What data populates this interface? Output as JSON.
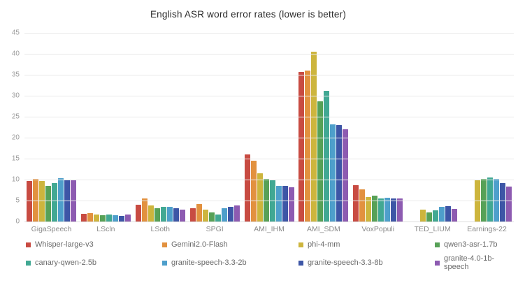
{
  "chart_data": {
    "type": "bar",
    "title": "English ASR word error rates (lower is better)",
    "categories": [
      "GigaSpeech",
      "LScln",
      "LSoth",
      "SPGI",
      "AMI_IHM",
      "AMI_SDM",
      "VoxPopuli",
      "TED_LIUM",
      "Earnings-22"
    ],
    "series": [
      {
        "name": "Whisper-large-v3",
        "color": "#c84b42",
        "values": [
          9.8,
          2.0,
          4.2,
          3.3,
          16.2,
          35.8,
          8.9,
          null,
          null
        ]
      },
      {
        "name": "Gemini2.0-Flash",
        "color": "#e2913f",
        "values": [
          10.3,
          2.2,
          5.7,
          4.3,
          14.6,
          36.2,
          7.8,
          null,
          null
        ]
      },
      {
        "name": "phi-4-mm",
        "color": "#cdb53d",
        "values": [
          9.8,
          1.8,
          4.0,
          3.0,
          11.6,
          40.7,
          6.0,
          3.0,
          10.0
        ]
      },
      {
        "name": "qwen3-asr-1.7b",
        "color": "#57a157",
        "values": [
          8.6,
          1.7,
          3.4,
          2.4,
          10.4,
          28.8,
          6.4,
          2.3,
          10.3
        ]
      },
      {
        "name": "canary-qwen-2.5b",
        "color": "#41a893",
        "values": [
          9.3,
          1.8,
          3.6,
          1.9,
          10.0,
          31.4,
          5.6,
          2.8,
          10.7
        ]
      },
      {
        "name": "granite-speech-3.3-2b",
        "color": "#4e9fcb",
        "values": [
          10.5,
          1.7,
          3.7,
          3.3,
          8.7,
          23.3,
          5.9,
          3.7,
          10.3
        ]
      },
      {
        "name": "granite-speech-3.3-8b",
        "color": "#3d56a6",
        "values": [
          10.2,
          1.5,
          3.4,
          3.6,
          8.6,
          23.2,
          5.6,
          3.8,
          9.4
        ]
      },
      {
        "name": "granite-4.0-1b-speech",
        "color": "#8d5bb1",
        "values": [
          10.0,
          1.8,
          3.0,
          4.0,
          8.4,
          22.2,
          5.7,
          3.2,
          8.5
        ]
      }
    ],
    "ylim": [
      0,
      45
    ],
    "yticks": [
      0,
      5,
      10,
      15,
      20,
      25,
      30,
      35,
      40,
      45
    ],
    "grid": true,
    "legend_position": "bottom",
    "axis_text_color": "#9a9a9a",
    "gridline_color": "#e9e9e9"
  }
}
